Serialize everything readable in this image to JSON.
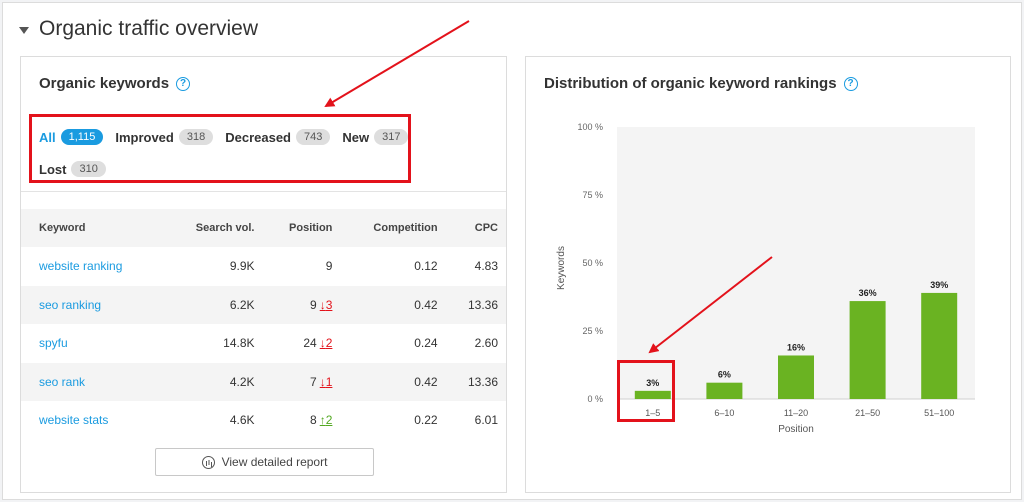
{
  "section": {
    "title": "Organic traffic overview"
  },
  "left_card": {
    "title": "Organic keywords",
    "filters": [
      {
        "label": "All",
        "count": "1,115",
        "active": true
      },
      {
        "label": "Improved",
        "count": "318",
        "active": false
      },
      {
        "label": "Decreased",
        "count": "743",
        "active": false
      },
      {
        "label": "New",
        "count": "317",
        "active": false
      },
      {
        "label": "Lost",
        "count": "310",
        "active": false
      }
    ],
    "table": {
      "headers": [
        "Keyword",
        "Search vol.",
        "Position",
        "Competition",
        "CPC"
      ],
      "rows": [
        {
          "keyword": "website ranking",
          "volume": "9.9K",
          "position": "9",
          "change": "",
          "direction": "",
          "competition": "0.12",
          "cpc": "4.83"
        },
        {
          "keyword": "seo ranking",
          "volume": "6.2K",
          "position": "9",
          "change": "3",
          "direction": "down",
          "competition": "0.42",
          "cpc": "13.36"
        },
        {
          "keyword": "spyfu",
          "volume": "14.8K",
          "position": "24",
          "change": "2",
          "direction": "down",
          "competition": "0.24",
          "cpc": "2.60"
        },
        {
          "keyword": "seo rank",
          "volume": "4.2K",
          "position": "7",
          "change": "1",
          "direction": "down",
          "competition": "0.42",
          "cpc": "13.36"
        },
        {
          "keyword": "website stats",
          "volume": "4.6K",
          "position": "8",
          "change": "2",
          "direction": "up",
          "competition": "0.22",
          "cpc": "6.01"
        }
      ]
    },
    "report_button": "View detailed report"
  },
  "right_card": {
    "title": "Distribution of organic keyword rankings"
  },
  "chart_data": {
    "type": "bar",
    "title": "Distribution of organic keyword rankings",
    "categories": [
      "1–5",
      "6–10",
      "11–20",
      "21–50",
      "51–100"
    ],
    "values": [
      3,
      6,
      16,
      36,
      39
    ],
    "value_labels": [
      "3%",
      "6%",
      "16%",
      "36%",
      "39%"
    ],
    "xlabel": "Position",
    "ylabel": "Keywords",
    "ylim": [
      0,
      100
    ],
    "yticks": [
      0,
      25,
      50,
      75,
      100
    ],
    "ytick_labels": [
      "0 %",
      "25 %",
      "50 %",
      "75 %",
      "100 %"
    ],
    "grid": false,
    "bar_color": "#6ab322",
    "plot_bg": "#f4f4f4"
  },
  "colors": {
    "accent": "#1a9be0",
    "down": "#e3121b",
    "up": "#52a821",
    "annotation": "#e3121b"
  }
}
